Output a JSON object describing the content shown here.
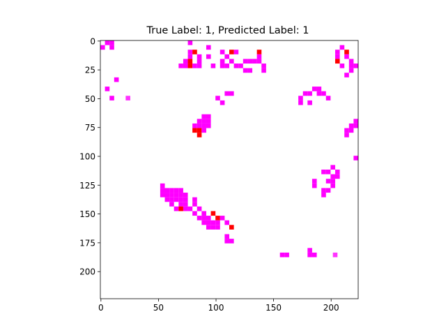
{
  "chart_data": {
    "type": "heatmap",
    "title": "True Label: 1, Predicted Label: 1",
    "xlabel": "",
    "ylabel": "",
    "xlim": [
      -0.5,
      223.5
    ],
    "ylim": [
      223.5,
      -0.5
    ],
    "xticks": [
      0,
      50,
      100,
      150,
      200
    ],
    "yticks": [
      0,
      25,
      50,
      75,
      100,
      125,
      150,
      175,
      200
    ],
    "cell_size": 4,
    "colors": {
      "magenta": "#ff00ff",
      "red": "#ff0000",
      "light_magenta": "#ff33ff"
    },
    "cells": [
      {
        "x": 0,
        "y": 4,
        "c": "magenta"
      },
      {
        "x": 4,
        "y": 0,
        "c": "magenta"
      },
      {
        "x": 8,
        "y": 0,
        "c": "magenta"
      },
      {
        "x": 8,
        "y": 4,
        "c": "magenta"
      },
      {
        "x": 12,
        "y": 32,
        "c": "magenta"
      },
      {
        "x": 4,
        "y": 40,
        "c": "magenta"
      },
      {
        "x": 8,
        "y": 48,
        "c": "magenta"
      },
      {
        "x": 22,
        "y": 48,
        "c": "light_magenta"
      },
      {
        "x": 76,
        "y": 0,
        "c": "magenta"
      },
      {
        "x": 76,
        "y": 8,
        "c": "magenta"
      },
      {
        "x": 80,
        "y": 8,
        "c": "red"
      },
      {
        "x": 76,
        "y": 12,
        "c": "magenta"
      },
      {
        "x": 84,
        "y": 12,
        "c": "magenta"
      },
      {
        "x": 72,
        "y": 16,
        "c": "magenta"
      },
      {
        "x": 72,
        "y": 20,
        "c": "magenta"
      },
      {
        "x": 68,
        "y": 20,
        "c": "magenta"
      },
      {
        "x": 76,
        "y": 16,
        "c": "red"
      },
      {
        "x": 76,
        "y": 20,
        "c": "red"
      },
      {
        "x": 80,
        "y": 20,
        "c": "magenta"
      },
      {
        "x": 84,
        "y": 16,
        "c": "magenta"
      },
      {
        "x": 84,
        "y": 20,
        "c": "magenta"
      },
      {
        "x": 92,
        "y": 4,
        "c": "magenta"
      },
      {
        "x": 92,
        "y": 12,
        "c": "magenta"
      },
      {
        "x": 96,
        "y": 20,
        "c": "magenta"
      },
      {
        "x": 104,
        "y": 8,
        "c": "magenta"
      },
      {
        "x": 104,
        "y": 16,
        "c": "magenta"
      },
      {
        "x": 108,
        "y": 12,
        "c": "magenta"
      },
      {
        "x": 104,
        "y": 20,
        "c": "magenta"
      },
      {
        "x": 108,
        "y": 20,
        "c": "magenta"
      },
      {
        "x": 112,
        "y": 8,
        "c": "red"
      },
      {
        "x": 116,
        "y": 8,
        "c": "magenta"
      },
      {
        "x": 112,
        "y": 16,
        "c": "magenta"
      },
      {
        "x": 116,
        "y": 20,
        "c": "magenta"
      },
      {
        "x": 120,
        "y": 20,
        "c": "magenta"
      },
      {
        "x": 124,
        "y": 16,
        "c": "magenta"
      },
      {
        "x": 128,
        "y": 16,
        "c": "magenta"
      },
      {
        "x": 124,
        "y": 24,
        "c": "magenta"
      },
      {
        "x": 128,
        "y": 24,
        "c": "magenta"
      },
      {
        "x": 132,
        "y": 16,
        "c": "magenta"
      },
      {
        "x": 136,
        "y": 8,
        "c": "red"
      },
      {
        "x": 136,
        "y": 12,
        "c": "magenta"
      },
      {
        "x": 136,
        "y": 16,
        "c": "magenta"
      },
      {
        "x": 140,
        "y": 20,
        "c": "magenta"
      },
      {
        "x": 140,
        "y": 24,
        "c": "magenta"
      },
      {
        "x": 108,
        "y": 44,
        "c": "magenta"
      },
      {
        "x": 112,
        "y": 44,
        "c": "magenta"
      },
      {
        "x": 100,
        "y": 48,
        "c": "magenta"
      },
      {
        "x": 104,
        "y": 52,
        "c": "magenta"
      },
      {
        "x": 88,
        "y": 64,
        "c": "magenta"
      },
      {
        "x": 92,
        "y": 64,
        "c": "magenta"
      },
      {
        "x": 84,
        "y": 68,
        "c": "magenta"
      },
      {
        "x": 88,
        "y": 68,
        "c": "magenta"
      },
      {
        "x": 92,
        "y": 68,
        "c": "magenta"
      },
      {
        "x": 80,
        "y": 72,
        "c": "magenta"
      },
      {
        "x": 84,
        "y": 72,
        "c": "magenta"
      },
      {
        "x": 88,
        "y": 72,
        "c": "magenta"
      },
      {
        "x": 92,
        "y": 72,
        "c": "magenta"
      },
      {
        "x": 80,
        "y": 76,
        "c": "red"
      },
      {
        "x": 84,
        "y": 76,
        "c": "red"
      },
      {
        "x": 88,
        "y": 76,
        "c": "magenta"
      },
      {
        "x": 84,
        "y": 80,
        "c": "red"
      },
      {
        "x": 180,
        "y": 44,
        "c": "magenta"
      },
      {
        "x": 184,
        "y": 40,
        "c": "magenta"
      },
      {
        "x": 188,
        "y": 40,
        "c": "magenta"
      },
      {
        "x": 188,
        "y": 44,
        "c": "magenta"
      },
      {
        "x": 192,
        "y": 44,
        "c": "magenta"
      },
      {
        "x": 196,
        "y": 48,
        "c": "magenta"
      },
      {
        "x": 172,
        "y": 48,
        "c": "magenta"
      },
      {
        "x": 172,
        "y": 52,
        "c": "magenta"
      },
      {
        "x": 180,
        "y": 52,
        "c": "magenta"
      },
      {
        "x": 176,
        "y": 44,
        "c": "magenta"
      },
      {
        "x": 208,
        "y": 4,
        "c": "magenta"
      },
      {
        "x": 204,
        "y": 8,
        "c": "magenta"
      },
      {
        "x": 204,
        "y": 12,
        "c": "magenta"
      },
      {
        "x": 204,
        "y": 16,
        "c": "red"
      },
      {
        "x": 208,
        "y": 20,
        "c": "magenta"
      },
      {
        "x": 212,
        "y": 8,
        "c": "red"
      },
      {
        "x": 212,
        "y": 12,
        "c": "magenta"
      },
      {
        "x": 216,
        "y": 16,
        "c": "magenta"
      },
      {
        "x": 216,
        "y": 20,
        "c": "magenta"
      },
      {
        "x": 220,
        "y": 20,
        "c": "magenta"
      },
      {
        "x": 216,
        "y": 24,
        "c": "magenta"
      },
      {
        "x": 212,
        "y": 28,
        "c": "magenta"
      },
      {
        "x": 220,
        "y": 68,
        "c": "magenta"
      },
      {
        "x": 216,
        "y": 72,
        "c": "magenta"
      },
      {
        "x": 220,
        "y": 72,
        "c": "magenta"
      },
      {
        "x": 212,
        "y": 76,
        "c": "magenta"
      },
      {
        "x": 216,
        "y": 76,
        "c": "magenta"
      },
      {
        "x": 212,
        "y": 80,
        "c": "magenta"
      },
      {
        "x": 220,
        "y": 100,
        "c": "magenta"
      },
      {
        "x": 196,
        "y": 112,
        "c": "magenta"
      },
      {
        "x": 200,
        "y": 108,
        "c": "magenta"
      },
      {
        "x": 204,
        "y": 112,
        "c": "magenta"
      },
      {
        "x": 200,
        "y": 116,
        "c": "magenta"
      },
      {
        "x": 204,
        "y": 116,
        "c": "magenta"
      },
      {
        "x": 192,
        "y": 112,
        "c": "magenta"
      },
      {
        "x": 196,
        "y": 120,
        "c": "magenta"
      },
      {
        "x": 200,
        "y": 120,
        "c": "magenta"
      },
      {
        "x": 200,
        "y": 124,
        "c": "magenta"
      },
      {
        "x": 196,
        "y": 128,
        "c": "magenta"
      },
      {
        "x": 192,
        "y": 128,
        "c": "magenta"
      },
      {
        "x": 192,
        "y": 132,
        "c": "magenta"
      },
      {
        "x": 184,
        "y": 120,
        "c": "magenta"
      },
      {
        "x": 184,
        "y": 124,
        "c": "magenta"
      },
      {
        "x": 52,
        "y": 124,
        "c": "magenta"
      },
      {
        "x": 52,
        "y": 128,
        "c": "magenta"
      },
      {
        "x": 56,
        "y": 128,
        "c": "magenta"
      },
      {
        "x": 60,
        "y": 128,
        "c": "magenta"
      },
      {
        "x": 64,
        "y": 128,
        "c": "magenta"
      },
      {
        "x": 68,
        "y": 128,
        "c": "magenta"
      },
      {
        "x": 52,
        "y": 132,
        "c": "magenta"
      },
      {
        "x": 56,
        "y": 132,
        "c": "magenta"
      },
      {
        "x": 60,
        "y": 132,
        "c": "magenta"
      },
      {
        "x": 64,
        "y": 132,
        "c": "magenta"
      },
      {
        "x": 68,
        "y": 132,
        "c": "magenta"
      },
      {
        "x": 72,
        "y": 132,
        "c": "magenta"
      },
      {
        "x": 56,
        "y": 136,
        "c": "magenta"
      },
      {
        "x": 60,
        "y": 136,
        "c": "magenta"
      },
      {
        "x": 64,
        "y": 136,
        "c": "magenta"
      },
      {
        "x": 68,
        "y": 136,
        "c": "magenta"
      },
      {
        "x": 72,
        "y": 136,
        "c": "magenta"
      },
      {
        "x": 60,
        "y": 140,
        "c": "magenta"
      },
      {
        "x": 68,
        "y": 140,
        "c": "magenta"
      },
      {
        "x": 72,
        "y": 140,
        "c": "magenta"
      },
      {
        "x": 64,
        "y": 144,
        "c": "magenta"
      },
      {
        "x": 68,
        "y": 144,
        "c": "red"
      },
      {
        "x": 72,
        "y": 144,
        "c": "magenta"
      },
      {
        "x": 76,
        "y": 144,
        "c": "magenta"
      },
      {
        "x": 80,
        "y": 136,
        "c": "magenta"
      },
      {
        "x": 80,
        "y": 140,
        "c": "magenta"
      },
      {
        "x": 84,
        "y": 144,
        "c": "magenta"
      },
      {
        "x": 80,
        "y": 148,
        "c": "magenta"
      },
      {
        "x": 88,
        "y": 148,
        "c": "magenta"
      },
      {
        "x": 84,
        "y": 152,
        "c": "magenta"
      },
      {
        "x": 88,
        "y": 152,
        "c": "magenta"
      },
      {
        "x": 88,
        "y": 156,
        "c": "magenta"
      },
      {
        "x": 92,
        "y": 152,
        "c": "magenta"
      },
      {
        "x": 92,
        "y": 156,
        "c": "magenta"
      },
      {
        "x": 96,
        "y": 148,
        "c": "red"
      },
      {
        "x": 96,
        "y": 156,
        "c": "magenta"
      },
      {
        "x": 100,
        "y": 152,
        "c": "red"
      },
      {
        "x": 104,
        "y": 152,
        "c": "magenta"
      },
      {
        "x": 100,
        "y": 156,
        "c": "magenta"
      },
      {
        "x": 92,
        "y": 160,
        "c": "magenta"
      },
      {
        "x": 96,
        "y": 160,
        "c": "magenta"
      },
      {
        "x": 100,
        "y": 160,
        "c": "magenta"
      },
      {
        "x": 108,
        "y": 156,
        "c": "magenta"
      },
      {
        "x": 112,
        "y": 160,
        "c": "red"
      },
      {
        "x": 108,
        "y": 168,
        "c": "magenta"
      },
      {
        "x": 108,
        "y": 172,
        "c": "magenta"
      },
      {
        "x": 112,
        "y": 172,
        "c": "magenta"
      },
      {
        "x": 156,
        "y": 184,
        "c": "magenta"
      },
      {
        "x": 160,
        "y": 184,
        "c": "magenta"
      },
      {
        "x": 180,
        "y": 180,
        "c": "magenta"
      },
      {
        "x": 180,
        "y": 184,
        "c": "magenta"
      },
      {
        "x": 184,
        "y": 184,
        "c": "magenta"
      },
      {
        "x": 202,
        "y": 184,
        "c": "light_magenta"
      }
    ]
  }
}
